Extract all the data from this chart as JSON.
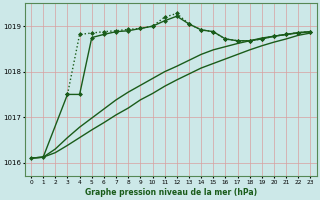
{
  "title": "Graphe pression niveau de la mer (hPa)",
  "bg_color": "#cce8e8",
  "grid_color": "#d8a0a0",
  "line_color": "#1a5c1a",
  "xlim": [
    -0.5,
    23.5
  ],
  "ylim": [
    1015.7,
    1019.5
  ],
  "yticks": [
    1016,
    1017,
    1018,
    1019
  ],
  "xticks": [
    0,
    1,
    2,
    3,
    4,
    5,
    6,
    7,
    8,
    9,
    10,
    11,
    12,
    13,
    14,
    15,
    16,
    17,
    18,
    19,
    20,
    21,
    22,
    23
  ],
  "series": [
    {
      "x": [
        0,
        1,
        2,
        3,
        4,
        5,
        6,
        7,
        8,
        9,
        10,
        11,
        12,
        13,
        14,
        15,
        16,
        17,
        18,
        19,
        20,
        21,
        22,
        23
      ],
      "y": [
        1016.1,
        1016.12,
        1016.22,
        1016.38,
        1016.55,
        1016.72,
        1016.88,
        1017.05,
        1017.2,
        1017.38,
        1017.52,
        1017.68,
        1017.82,
        1017.95,
        1018.08,
        1018.18,
        1018.28,
        1018.38,
        1018.48,
        1018.57,
        1018.65,
        1018.72,
        1018.8,
        1018.85
      ],
      "marker": null,
      "linestyle": "-",
      "linewidth": 1.0
    },
    {
      "x": [
        0,
        1,
        2,
        3,
        4,
        5,
        6,
        7,
        8,
        9,
        10,
        11,
        12,
        13,
        14,
        15,
        16,
        17,
        18,
        19,
        20,
        21,
        22,
        23
      ],
      "y": [
        1016.1,
        1016.12,
        1016.3,
        1016.55,
        1016.78,
        1016.98,
        1017.18,
        1017.38,
        1017.55,
        1017.7,
        1017.85,
        1018.0,
        1018.12,
        1018.25,
        1018.38,
        1018.48,
        1018.55,
        1018.62,
        1018.68,
        1018.74,
        1018.78,
        1018.82,
        1018.85,
        1018.88
      ],
      "marker": null,
      "linestyle": "-",
      "linewidth": 1.0
    },
    {
      "x": [
        0,
        1,
        3,
        4,
        5,
        6,
        7,
        8,
        9,
        10,
        11,
        12,
        13,
        14,
        15,
        16,
        17,
        18,
        19,
        20,
        21,
        22,
        23
      ],
      "y": [
        1016.1,
        1016.12,
        1017.5,
        1017.5,
        1018.75,
        1018.82,
        1018.88,
        1018.9,
        1018.95,
        1019.0,
        1019.12,
        1019.22,
        1019.05,
        1018.92,
        1018.88,
        1018.72,
        1018.68,
        1018.68,
        1018.72,
        1018.78,
        1018.82,
        1018.86,
        1018.88
      ],
      "marker": "D",
      "markersize": 2.0,
      "linestyle": "-",
      "linewidth": 1.0
    },
    {
      "x": [
        3,
        4,
        5,
        6,
        7,
        8,
        9,
        10,
        11,
        12,
        13,
        14,
        15,
        16,
        17,
        18,
        19,
        20,
        21,
        22,
        23
      ],
      "y": [
        1017.5,
        1018.82,
        1018.85,
        1018.88,
        1018.9,
        1018.93,
        1018.95,
        1019.0,
        1019.2,
        1019.28,
        1019.05,
        1018.92,
        1018.88,
        1018.72,
        1018.68,
        1018.68,
        1018.72,
        1018.78,
        1018.82,
        1018.86,
        1018.88
      ],
      "marker": "D",
      "markersize": 2.0,
      "linestyle": ":",
      "linewidth": 1.0
    }
  ]
}
